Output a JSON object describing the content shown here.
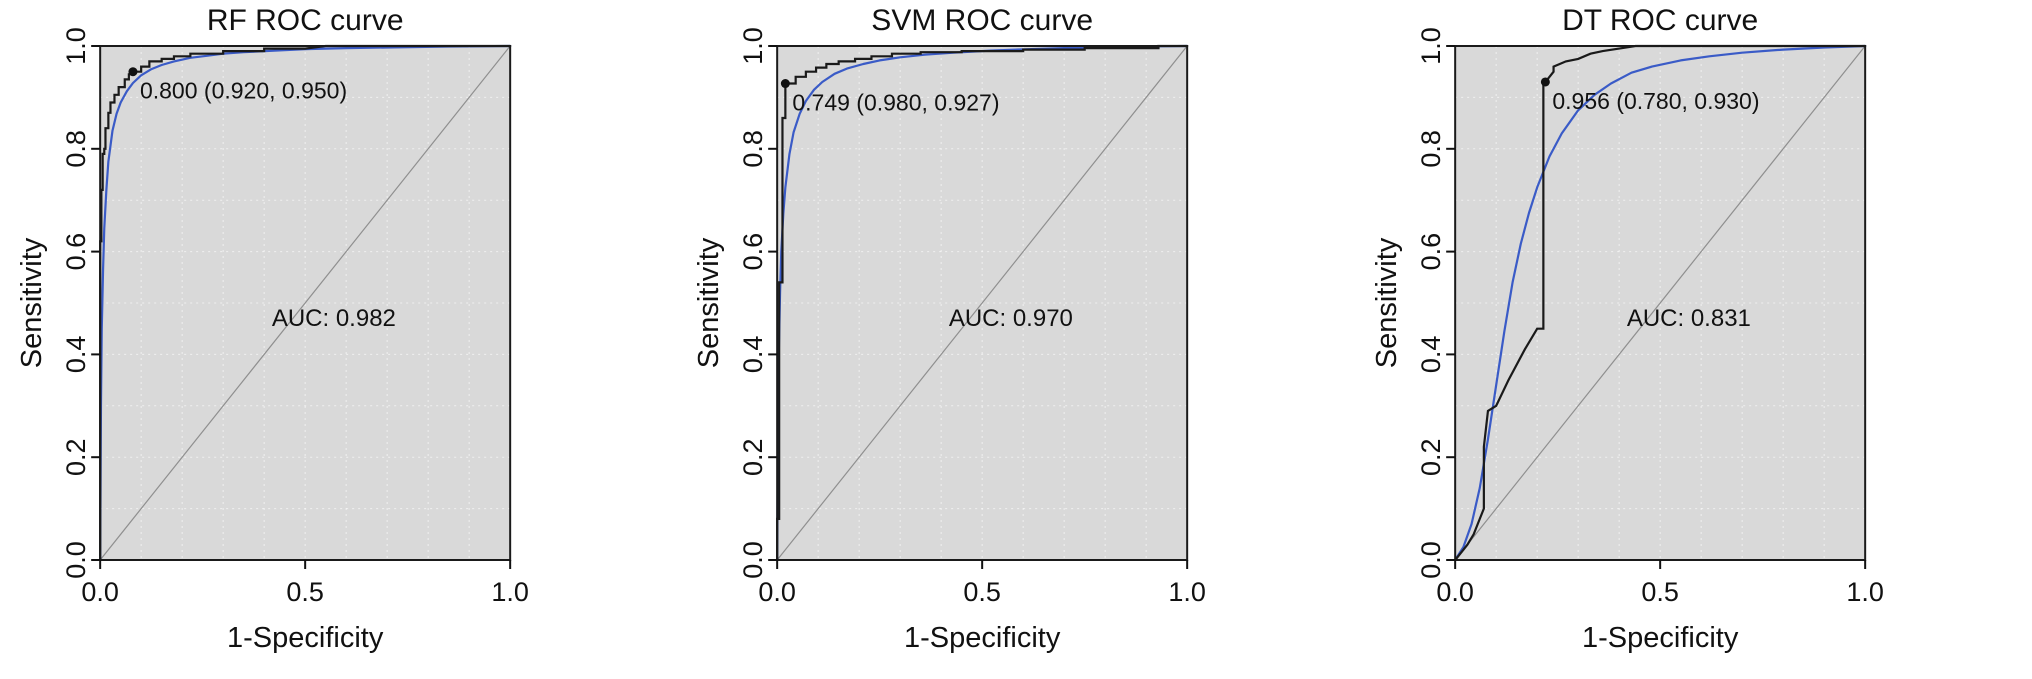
{
  "page": {
    "background": "#ffffff"
  },
  "chart_data": [
    {
      "type": "line",
      "id": "rf",
      "title": "RF ROC curve",
      "xlabel": "1-Specificity",
      "ylabel": "Sensitivity",
      "xlim": [
        0,
        1
      ],
      "ylim": [
        0,
        1
      ],
      "x_ticks": {
        "values": [
          0,
          0.5,
          1
        ],
        "labels": [
          "0.0",
          "0.5",
          "1.0"
        ]
      },
      "y_ticks": {
        "values": [
          0,
          0.2,
          0.4,
          0.6,
          0.8,
          1
        ],
        "labels": [
          "0.0",
          "0.2",
          "0.4",
          "0.6",
          "0.8",
          "1.0"
        ]
      },
      "grid": true,
      "diagonal": true,
      "auc": {
        "value": 0.982,
        "label": "AUC: 0.982",
        "x": 0.57,
        "y": 0.455
      },
      "best_point": {
        "label": "0.800 (0.920, 0.950)",
        "threshold": 0.8,
        "specificity": 0.92,
        "sensitivity": 0.95,
        "x": 0.08,
        "y": 0.95
      },
      "colors": {
        "plot_bg": "#d9d9d9",
        "grid": "#ffffff",
        "diagonal": "#8f8f8f",
        "roc": "#1a1a1a",
        "smooth": "#3a5bc7"
      },
      "series": [
        {
          "name": "smoothed-roc-curve",
          "style": "smooth",
          "color": "#3a5bc7",
          "points": [
            [
              0,
              0
            ],
            [
              0.002,
              0.3
            ],
            [
              0.004,
              0.45
            ],
            [
              0.007,
              0.565
            ],
            [
              0.01,
              0.645
            ],
            [
              0.015,
              0.72
            ],
            [
              0.02,
              0.775
            ],
            [
              0.03,
              0.835
            ],
            [
              0.04,
              0.868
            ],
            [
              0.05,
              0.89
            ],
            [
              0.065,
              0.912
            ],
            [
              0.08,
              0.928
            ],
            [
              0.1,
              0.943
            ],
            [
              0.125,
              0.955
            ],
            [
              0.15,
              0.963
            ],
            [
              0.18,
              0.97
            ],
            [
              0.22,
              0.977
            ],
            [
              0.26,
              0.981
            ],
            [
              0.3,
              0.985
            ],
            [
              0.35,
              0.988
            ],
            [
              0.4,
              0.99
            ],
            [
              0.5,
              0.994
            ],
            [
              0.6,
              0.996
            ],
            [
              0.7,
              0.997
            ],
            [
              0.85,
              0.999
            ],
            [
              1,
              1
            ]
          ]
        },
        {
          "name": "roc-curve",
          "style": "step",
          "color": "#1a1a1a",
          "points": [
            [
              0,
              0
            ],
            [
              0,
              0.62
            ],
            [
              0.003,
              0.62
            ],
            [
              0.003,
              0.72
            ],
            [
              0.006,
              0.72
            ],
            [
              0.006,
              0.79
            ],
            [
              0.01,
              0.79
            ],
            [
              0.01,
              0.8
            ],
            [
              0.013,
              0.8
            ],
            [
              0.013,
              0.84
            ],
            [
              0.02,
              0.84
            ],
            [
              0.02,
              0.87
            ],
            [
              0.025,
              0.87
            ],
            [
              0.025,
              0.89
            ],
            [
              0.035,
              0.89
            ],
            [
              0.035,
              0.905
            ],
            [
              0.045,
              0.905
            ],
            [
              0.045,
              0.92
            ],
            [
              0.06,
              0.92
            ],
            [
              0.06,
              0.935
            ],
            [
              0.07,
              0.935
            ],
            [
              0.07,
              0.945
            ],
            [
              0.08,
              0.945
            ],
            [
              0.08,
              0.95
            ],
            [
              0.1,
              0.95
            ],
            [
              0.1,
              0.96
            ],
            [
              0.12,
              0.96
            ],
            [
              0.12,
              0.97
            ],
            [
              0.15,
              0.97
            ],
            [
              0.15,
              0.975
            ],
            [
              0.18,
              0.975
            ],
            [
              0.18,
              0.98
            ],
            [
              0.22,
              0.98
            ],
            [
              0.22,
              0.985
            ],
            [
              0.3,
              0.985
            ],
            [
              0.3,
              0.99
            ],
            [
              0.4,
              0.99
            ],
            [
              0.4,
              0.995
            ],
            [
              0.5,
              0.995
            ],
            [
              0.55,
              1.0
            ],
            [
              1,
              1
            ]
          ]
        }
      ]
    },
    {
      "type": "line",
      "id": "svm",
      "title": "SVM ROC curve",
      "xlabel": "1-Specificity",
      "ylabel": "Sensitivity",
      "xlim": [
        0,
        1
      ],
      "ylim": [
        0,
        1
      ],
      "x_ticks": {
        "values": [
          0,
          0.5,
          1
        ],
        "labels": [
          "0.0",
          "0.5",
          "1.0"
        ]
      },
      "y_ticks": {
        "values": [
          0,
          0.2,
          0.4,
          0.6,
          0.8,
          1
        ],
        "labels": [
          "0.0",
          "0.2",
          "0.4",
          "0.6",
          "0.8",
          "1.0"
        ]
      },
      "grid": true,
      "diagonal": true,
      "auc": {
        "value": 0.97,
        "label": "AUC: 0.970",
        "x": 0.57,
        "y": 0.455
      },
      "best_point": {
        "label": "0.749 (0.980, 0.927)",
        "threshold": 0.749,
        "specificity": 0.98,
        "sensitivity": 0.927,
        "x": 0.02,
        "y": 0.927
      },
      "colors": {
        "plot_bg": "#d9d9d9",
        "grid": "#ffffff",
        "diagonal": "#8f8f8f",
        "roc": "#1a1a1a",
        "smooth": "#3a5bc7"
      },
      "series": [
        {
          "name": "smoothed-roc-curve",
          "style": "smooth",
          "color": "#3a5bc7",
          "points": [
            [
              0,
              0
            ],
            [
              0.002,
              0.25
            ],
            [
              0.004,
              0.4
            ],
            [
              0.007,
              0.52
            ],
            [
              0.01,
              0.6
            ],
            [
              0.015,
              0.675
            ],
            [
              0.02,
              0.725
            ],
            [
              0.03,
              0.79
            ],
            [
              0.04,
              0.832
            ],
            [
              0.055,
              0.868
            ],
            [
              0.07,
              0.893
            ],
            [
              0.09,
              0.915
            ],
            [
              0.11,
              0.93
            ],
            [
              0.14,
              0.946
            ],
            [
              0.17,
              0.956
            ],
            [
              0.21,
              0.965
            ],
            [
              0.25,
              0.972
            ],
            [
              0.3,
              0.978
            ],
            [
              0.36,
              0.983
            ],
            [
              0.43,
              0.987
            ],
            [
              0.52,
              0.991
            ],
            [
              0.62,
              0.994
            ],
            [
              0.75,
              0.997
            ],
            [
              0.88,
              0.999
            ],
            [
              1,
              1
            ]
          ]
        },
        {
          "name": "roc-curve",
          "style": "step",
          "color": "#1a1a1a",
          "points": [
            [
              0,
              0
            ],
            [
              0,
              0.08
            ],
            [
              0.005,
              0.08
            ],
            [
              0.005,
              0.54
            ],
            [
              0.013,
              0.54
            ],
            [
              0.013,
              0.86
            ],
            [
              0.02,
              0.86
            ],
            [
              0.02,
              0.927
            ],
            [
              0.045,
              0.927
            ],
            [
              0.045,
              0.94
            ],
            [
              0.07,
              0.94
            ],
            [
              0.07,
              0.95
            ],
            [
              0.095,
              0.95
            ],
            [
              0.095,
              0.958
            ],
            [
              0.12,
              0.958
            ],
            [
              0.12,
              0.965
            ],
            [
              0.15,
              0.965
            ],
            [
              0.15,
              0.97
            ],
            [
              0.19,
              0.97
            ],
            [
              0.19,
              0.975
            ],
            [
              0.23,
              0.975
            ],
            [
              0.23,
              0.98
            ],
            [
              0.28,
              0.98
            ],
            [
              0.28,
              0.985
            ],
            [
              0.35,
              0.985
            ],
            [
              0.35,
              0.988
            ],
            [
              0.45,
              0.988
            ],
            [
              0.45,
              0.99
            ],
            [
              0.6,
              0.99
            ],
            [
              0.6,
              0.993
            ],
            [
              0.75,
              0.993
            ],
            [
              0.75,
              0.996
            ],
            [
              0.93,
              0.996
            ],
            [
              0.93,
              1.0
            ],
            [
              1,
              1
            ]
          ]
        }
      ]
    },
    {
      "type": "line",
      "id": "dt",
      "title": "DT ROC curve",
      "xlabel": "1-Specificity",
      "ylabel": "Sensitivity",
      "xlim": [
        0,
        1
      ],
      "ylim": [
        0,
        1
      ],
      "x_ticks": {
        "values": [
          0,
          0.5,
          1
        ],
        "labels": [
          "0.0",
          "0.5",
          "1.0"
        ]
      },
      "y_ticks": {
        "values": [
          0,
          0.2,
          0.4,
          0.6,
          0.8,
          1
        ],
        "labels": [
          "0.0",
          "0.2",
          "0.4",
          "0.6",
          "0.8",
          "1.0"
        ]
      },
      "grid": true,
      "diagonal": true,
      "auc": {
        "value": 0.831,
        "label": "AUC: 0.831",
        "x": 0.57,
        "y": 0.455
      },
      "best_point": {
        "label": "0.956 (0.780, 0.930)",
        "threshold": 0.956,
        "specificity": 0.78,
        "sensitivity": 0.93,
        "x": 0.22,
        "y": 0.93
      },
      "colors": {
        "plot_bg": "#d9d9d9",
        "grid": "#ffffff",
        "diagonal": "#8f8f8f",
        "roc": "#1a1a1a",
        "smooth": "#3a5bc7"
      },
      "series": [
        {
          "name": "smoothed-roc-curve",
          "style": "smooth",
          "color": "#3a5bc7",
          "points": [
            [
              0,
              0
            ],
            [
              0.02,
              0.025
            ],
            [
              0.04,
              0.07
            ],
            [
              0.06,
              0.14
            ],
            [
              0.08,
              0.235
            ],
            [
              0.1,
              0.34
            ],
            [
              0.12,
              0.445
            ],
            [
              0.14,
              0.54
            ],
            [
              0.16,
              0.615
            ],
            [
              0.18,
              0.675
            ],
            [
              0.2,
              0.725
            ],
            [
              0.23,
              0.785
            ],
            [
              0.26,
              0.83
            ],
            [
              0.3,
              0.875
            ],
            [
              0.34,
              0.905
            ],
            [
              0.38,
              0.927
            ],
            [
              0.43,
              0.948
            ],
            [
              0.48,
              0.96
            ],
            [
              0.55,
              0.972
            ],
            [
              0.62,
              0.98
            ],
            [
              0.7,
              0.987
            ],
            [
              0.8,
              0.993
            ],
            [
              0.9,
              0.997
            ],
            [
              1,
              1
            ]
          ]
        },
        {
          "name": "roc-curve",
          "style": "step",
          "color": "#1a1a1a",
          "points": [
            [
              0,
              0
            ],
            [
              0.015,
              0.015
            ],
            [
              0.03,
              0.03
            ],
            [
              0.045,
              0.05
            ],
            [
              0.06,
              0.08
            ],
            [
              0.07,
              0.1
            ],
            [
              0.07,
              0.22
            ],
            [
              0.08,
              0.29
            ],
            [
              0.1,
              0.3
            ],
            [
              0.13,
              0.35
            ],
            [
              0.17,
              0.41
            ],
            [
              0.2,
              0.45
            ],
            [
              0.215,
              0.45
            ],
            [
              0.215,
              0.93
            ],
            [
              0.22,
              0.93
            ],
            [
              0.24,
              0.95
            ],
            [
              0.24,
              0.96
            ],
            [
              0.27,
              0.97
            ],
            [
              0.3,
              0.975
            ],
            [
              0.33,
              0.985
            ],
            [
              0.36,
              0.99
            ],
            [
              0.4,
              0.995
            ],
            [
              0.44,
              1.0
            ],
            [
              1,
              1
            ]
          ]
        }
      ]
    }
  ]
}
